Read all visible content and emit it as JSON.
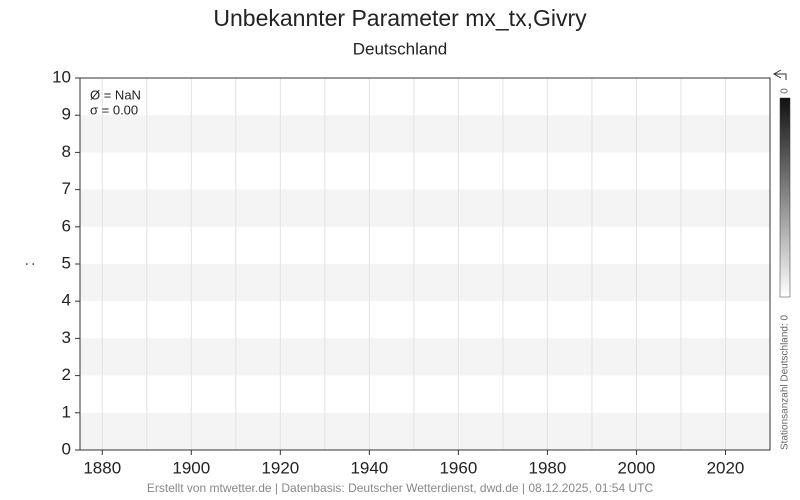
{
  "chart_data": {
    "type": "line",
    "title": "Unbekannter Parameter mx_tx,Givry",
    "subtitle": "Deutschland",
    "ylabel": ":",
    "annotations": [
      "Ø = NaN",
      "σ = 0.00"
    ],
    "x": [],
    "series": [],
    "xlim": [
      1875,
      2030
    ],
    "xticks": [
      1880,
      1900,
      1920,
      1940,
      1960,
      1980,
      2000,
      2020
    ],
    "ylim": [
      0,
      10
    ],
    "yticks": [
      0,
      1,
      2,
      3,
      4,
      5,
      6,
      7,
      8,
      9,
      10
    ],
    "grid": true,
    "colorbar": {
      "label": "Stationsanzahl Deutschland: 0",
      "ticks": [
        0
      ]
    },
    "footer": "Erstellt von mtwetter.de | Datenbasis: Deutscher Wetterdienst, dwd.de | 08.12.2025, 01:54 UTC"
  }
}
